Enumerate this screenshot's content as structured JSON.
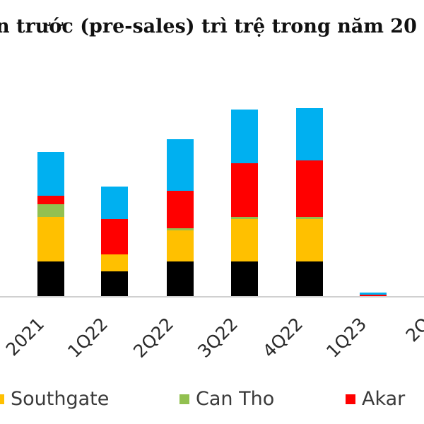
{
  "title": "n trước (pre-sales) trì trệ trong năm 20",
  "chart_data": {
    "type": "bar",
    "stacked": true,
    "categories": [
      "2021",
      "1Q22",
      "2Q22",
      "3Q22",
      "4Q22",
      "1Q23",
      "2Q"
    ],
    "series": [
      {
        "name": "",
        "color": "#000000",
        "values": [
          49,
          35,
          49,
          49,
          49,
          0,
          0
        ]
      },
      {
        "name": "Southgate",
        "color": "#ffc000",
        "values": [
          63,
          24,
          44,
          60,
          60,
          0,
          0
        ]
      },
      {
        "name": "Can Tho",
        "color": "#92c050",
        "values": [
          18,
          0,
          3,
          3,
          3,
          0,
          0
        ]
      },
      {
        "name": "Akar",
        "color": "#ff0000",
        "values": [
          12,
          50,
          53,
          76,
          80,
          2,
          0
        ]
      },
      {
        "name": "",
        "color": "#00b0f0",
        "values": [
          62,
          46,
          73,
          76,
          74,
          3,
          0
        ]
      }
    ],
    "legend": {
      "position": "bottom"
    },
    "grid": false,
    "ylim": [
      0,
      275
    ]
  }
}
